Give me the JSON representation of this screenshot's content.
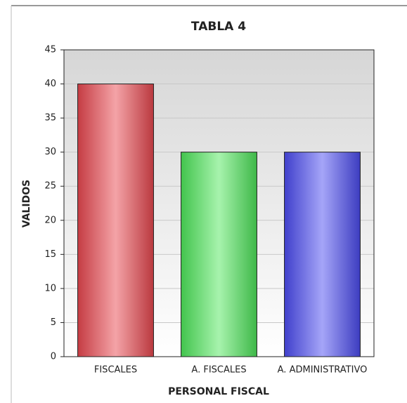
{
  "chart_data": {
    "type": "bar",
    "title": "TABLA 4",
    "categories": [
      "FISCALES",
      "A. FISCALES",
      "A. ADMINISTRATIVO"
    ],
    "values": [
      40,
      30,
      30
    ],
    "colors": [
      "#e8474f",
      "#4ee65a",
      "#4b4bf0"
    ],
    "x_label": "PERSONAL FISCAL",
    "y_label": "VALIDOS",
    "ylim": [
      0,
      45
    ],
    "yticks": [
      0,
      5,
      10,
      15,
      20,
      25,
      30,
      35,
      40,
      45
    ],
    "grid": true
  }
}
